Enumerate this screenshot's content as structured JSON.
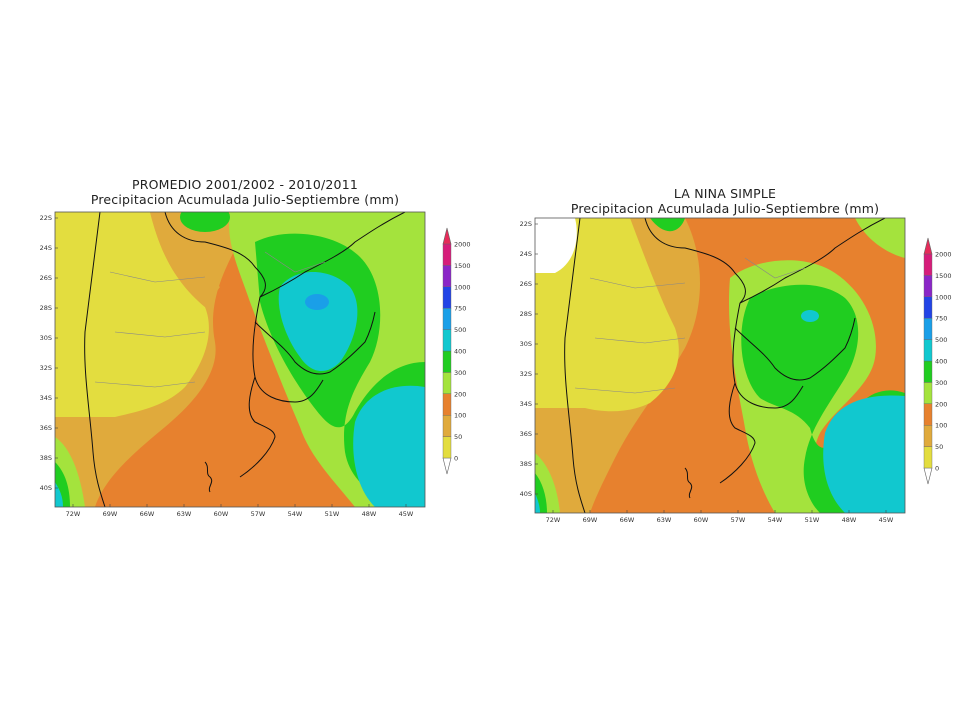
{
  "panels": [
    {
      "title": "PROMEDIO 2001/2002 - 2010/2011",
      "subtitle": "Precipitacion Acumulada Julio-Septiembre (mm)",
      "lat_ticks": [
        "22S",
        "24S",
        "26S",
        "28S",
        "30S",
        "32S",
        "34S",
        "36S",
        "38S",
        "40S"
      ],
      "lon_ticks": [
        "72W",
        "69W",
        "66W",
        "63W",
        "60W",
        "57W",
        "54W",
        "51W",
        "48W",
        "45W"
      ]
    },
    {
      "title": "LA NINA SIMPLE",
      "subtitle": "Precipitacion Acumulada Julio-Septiembre (mm)",
      "lat_ticks": [
        "22S",
        "24S",
        "26S",
        "28S",
        "30S",
        "32S",
        "34S",
        "36S",
        "38S",
        "40S"
      ],
      "lon_ticks": [
        "72W",
        "69W",
        "66W",
        "63W",
        "60W",
        "57W",
        "54W",
        "51W",
        "48W",
        "45W"
      ]
    }
  ],
  "colorbar": {
    "levels": [
      "0",
      "50",
      "100",
      "200",
      "300",
      "400",
      "500",
      "750",
      "1000",
      "1500",
      "2000"
    ],
    "colors": [
      "#e3dd3f",
      "#e0aa3c",
      "#e7812e",
      "#a4e33d",
      "#20cd20",
      "#11c8cf",
      "#1a9fe8",
      "#2244e6",
      "#8a26c7",
      "#d61d7a",
      "#e62b5a"
    ]
  }
}
